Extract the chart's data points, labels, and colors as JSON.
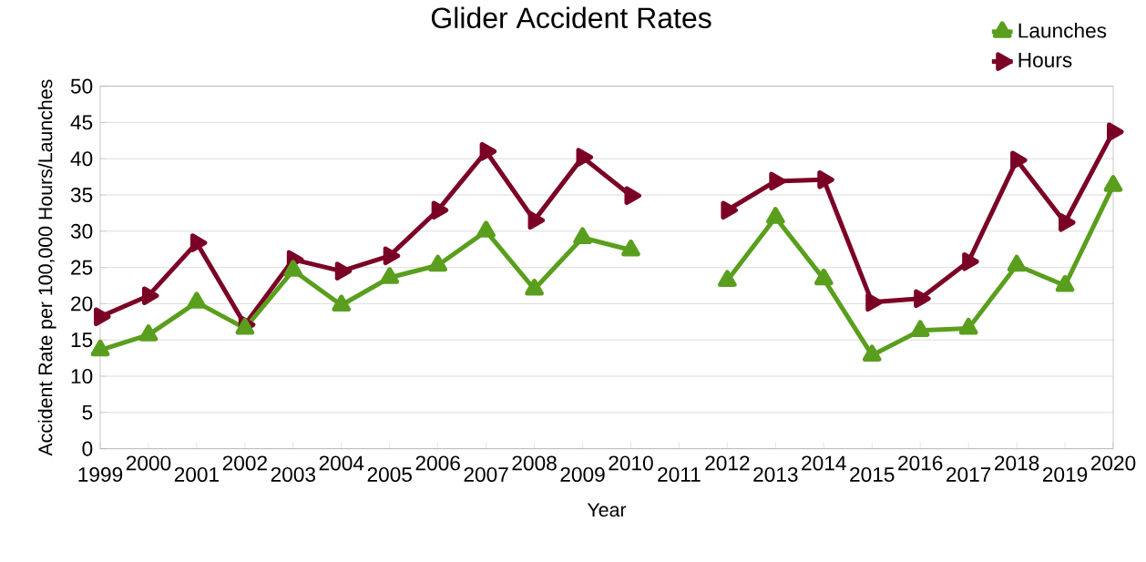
{
  "chart_data": {
    "type": "line",
    "title": "Glider Accident Rates",
    "xlabel": "Year",
    "ylabel": "Accident Rate per 100,000 Hours/Launches",
    "categories": [
      "1999",
      "2000",
      "2001",
      "2002",
      "2003",
      "2004",
      "2005",
      "2006",
      "2007",
      "2008",
      "2009",
      "2010",
      "2011",
      "2012",
      "2013",
      "2014",
      "2015",
      "2016",
      "2017",
      "2018",
      "2019",
      "2020"
    ],
    "series": [
      {
        "name": "Launches",
        "color": "#5a9e1e",
        "values": [
          13.6,
          15.7,
          20.2,
          16.6,
          24.6,
          19.8,
          23.6,
          25.3,
          30.0,
          22.0,
          29.1,
          27.4,
          null,
          23.2,
          31.9,
          23.4,
          12.9,
          16.3,
          16.6,
          25.3,
          22.5,
          36.3
        ]
      },
      {
        "name": "Hours",
        "color": "#7b0026",
        "values": [
          18.2,
          21.1,
          28.4,
          17.1,
          26.1,
          24.5,
          26.6,
          32.9,
          41.0,
          31.5,
          40.2,
          34.9,
          null,
          32.9,
          36.9,
          37.1,
          20.2,
          20.7,
          25.8,
          39.8,
          31.2,
          43.7
        ]
      }
    ],
    "ylim": [
      0,
      50
    ],
    "yticks": [
      0,
      5,
      10,
      15,
      20,
      25,
      30,
      35,
      40,
      45,
      50
    ],
    "grid": "y",
    "legend": "top right",
    "marker": "triangle"
  }
}
